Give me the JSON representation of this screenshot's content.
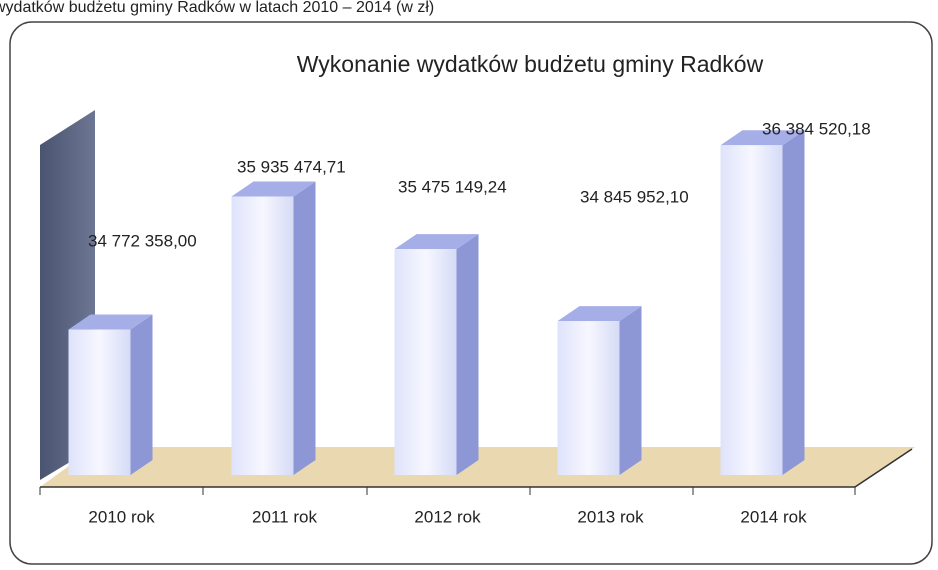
{
  "chart_data": {
    "type": "bar3d",
    "caption": "wydatków budżetu gminy Radków w latach 2010 – 2014 (w zł)",
    "title": "Wykonanie wydatków budżetu gminy Radków",
    "categories": [
      "2010 rok",
      "2011 rok",
      "2012 rok",
      "2013 rok",
      "2014 rok"
    ],
    "values": [
      34772358.0,
      35935474.71,
      35475149.24,
      34845952.1,
      36384520.18
    ],
    "value_labels": [
      "34 772 358,00",
      "35 935 474,71",
      "35 475 149,24",
      "34 845 952,10",
      "36 384 520,18"
    ],
    "ylim": [
      33500000,
      36500000
    ],
    "color": "#e6e9fb"
  }
}
